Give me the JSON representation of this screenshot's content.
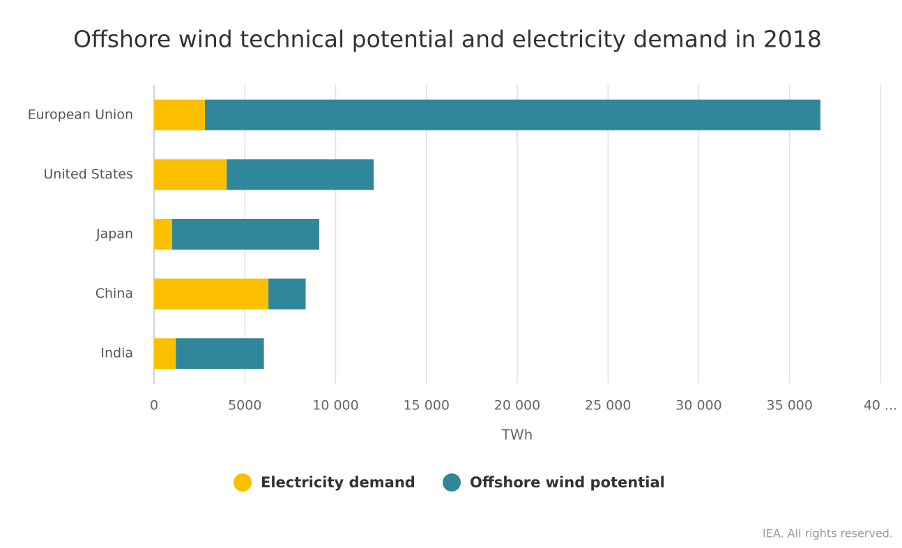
{
  "chart_data": {
    "type": "bar",
    "orientation": "horizontal",
    "stacked": true,
    "title": "Offshore wind technical potential and electricity demand in 2018",
    "categories": [
      "European Union",
      "United States",
      "Japan",
      "China",
      "India"
    ],
    "series": [
      {
        "name": "Electricity demand",
        "color": "#fcbf00",
        "values": [
          2800,
          4000,
          1000,
          6300,
          1200
        ]
      },
      {
        "name": "Offshore wind potential",
        "color": "#31879a",
        "values": [
          33900,
          8100,
          8100,
          2050,
          4850
        ]
      }
    ],
    "xlabel": "TWh",
    "xlim": [
      0,
      40000
    ],
    "xticks": [
      0,
      5000,
      {
        "value": 10000,
        "label": "10 000"
      },
      {
        "value": 15000,
        "label": "15 000"
      },
      {
        "value": 20000,
        "label": "20 000"
      },
      {
        "value": 25000,
        "label": "25 000"
      },
      {
        "value": 30000,
        "label": "30 000"
      },
      {
        "value": 35000,
        "label": "35 000"
      },
      {
        "value": 40000,
        "label": "40 ..."
      }
    ],
    "grid": true,
    "legend": "bottom",
    "source": "IEA. All rights reserved."
  }
}
